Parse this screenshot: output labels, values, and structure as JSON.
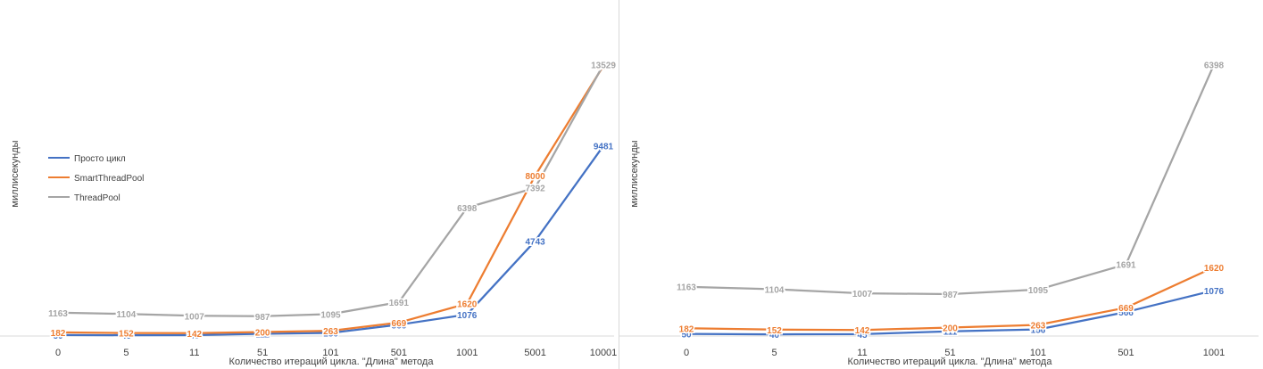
{
  "chart_data": [
    {
      "type": "line",
      "categories": [
        "0",
        "5",
        "11",
        "51",
        "101",
        "501",
        "1001",
        "5001",
        "10001"
      ],
      "series": [
        {
          "name": "Просто цикл",
          "color": "#4472C4",
          "values": [
            50,
            40,
            45,
            111,
            156,
            566,
            1076,
            4743,
            9481
          ]
        },
        {
          "name": "SmartThreadPool",
          "color": "#ED7D31",
          "values": [
            182,
            152,
            142,
            200,
            263,
            669,
            1620,
            8000,
            13470
          ]
        },
        {
          "name": "ThreadPool",
          "color": "#A5A5A5",
          "values": [
            1163,
            1104,
            1007,
            987,
            1095,
            1691,
            6398,
            7392,
            13529
          ]
        }
      ],
      "xlabel": "Количество итераций цикла. \"Длина\" метода",
      "ylabel": "миллисекунды",
      "ylim": [
        0,
        14000
      ],
      "grid": false,
      "legend": "left"
    },
    {
      "type": "line",
      "categories": [
        "0",
        "5",
        "11",
        "51",
        "101",
        "501",
        "1001"
      ],
      "series": [
        {
          "name": "Просто цикл",
          "color": "#4472C4",
          "values": [
            50,
            40,
            45,
            111,
            156,
            566,
            1076
          ]
        },
        {
          "name": "SmartThreadPool",
          "color": "#ED7D31",
          "values": [
            182,
            152,
            142,
            200,
            263,
            669,
            1620
          ]
        },
        {
          "name": "ThreadPool",
          "color": "#A5A5A5",
          "values": [
            1163,
            1104,
            1007,
            987,
            1095,
            1691,
            6398
          ]
        }
      ],
      "xlabel": "Количество итераций цикла. \"Длина\" метода",
      "ylabel": "миллисекунды",
      "ylim": [
        0,
        7000
      ],
      "grid": false,
      "legend": "none"
    }
  ]
}
